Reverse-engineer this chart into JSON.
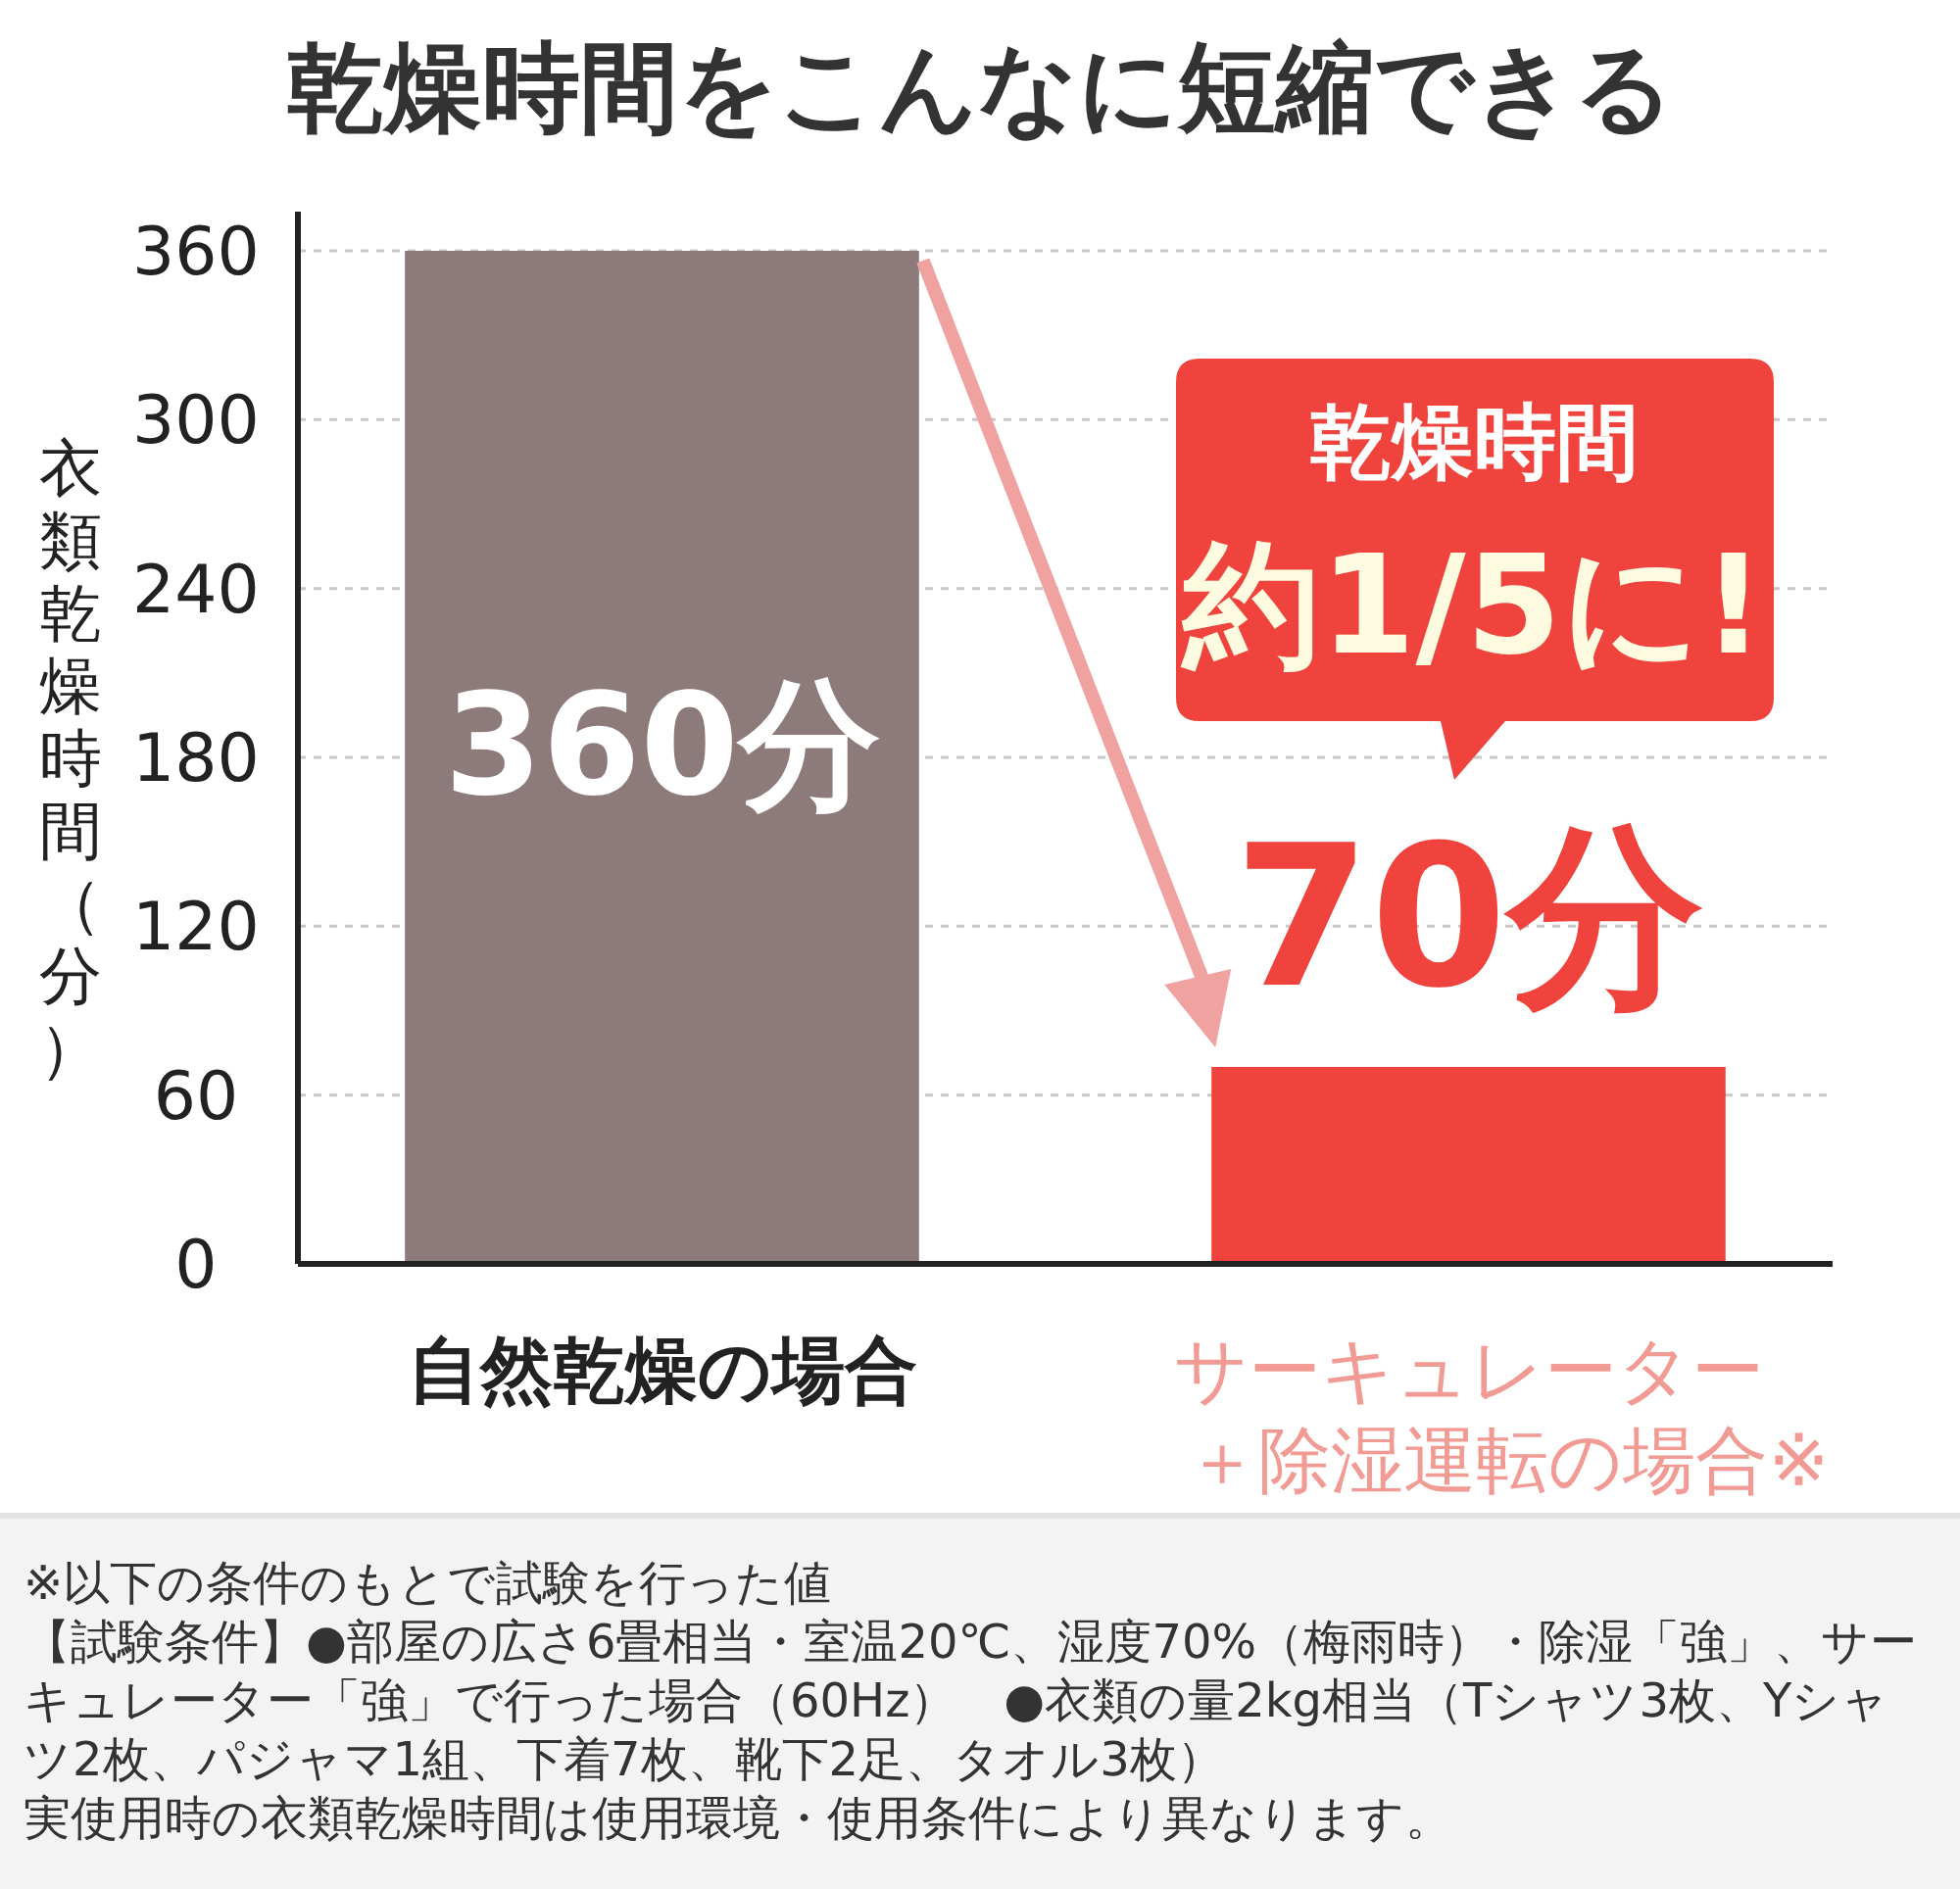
{
  "chart_data": {
    "type": "bar",
    "title": "乾燥時間をこんなに短縮できる",
    "ylabel": "衣類乾燥時間（分）",
    "categories": [
      "自然乾燥の場合",
      "サーキュレーター＋除湿運転の場合※"
    ],
    "values": [
      360,
      70
    ],
    "colors": [
      "#8c7b7a",
      "#f0433d"
    ],
    "value_labels": [
      "360分",
      "70分"
    ],
    "ylim": [
      0,
      360
    ],
    "yticks": [
      0,
      60,
      120,
      180,
      240,
      300,
      360
    ],
    "grid": "y",
    "annotations": [
      "乾燥時間",
      "約1/5に!",
      "※以下の条件のもとで試験を行った値",
      "【試験条件】●部屋の広さ6畳相当・室温20℃、湿度70%（梅雨時）・除湿「強」、サーキュレーター「強」で行った場合（60Hz）　●衣類の量2kg相当（Tシャツ3枚、Yシャツ2枚、パジャマ1組、下着7枚、靴下2足、タオル3枚）",
      "実使用時の衣類乾燥時間は使用環境・使用条件により異なります。"
    ]
  }
}
